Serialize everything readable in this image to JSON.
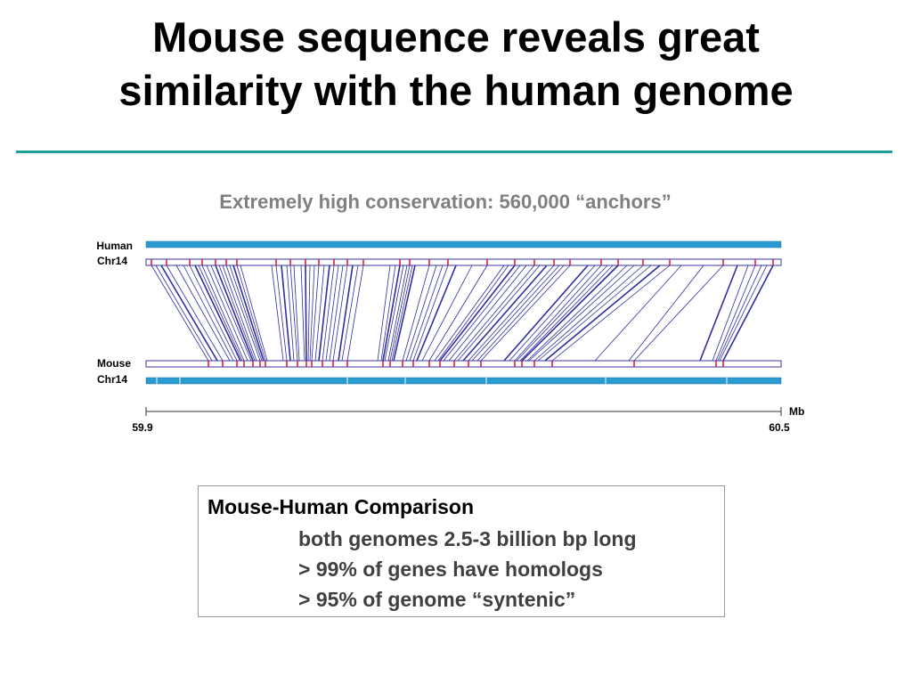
{
  "slide": {
    "title_line1": "Mouse sequence reveals great",
    "title_line2": "similarity with the human genome",
    "subtitle": "Extremely high conservation: 560,000 “anchors”"
  },
  "figure": {
    "human_label": "Human",
    "human_chr_label": "Chr14",
    "mouse_label": "Mouse",
    "mouse_chr_label": "Chr14",
    "unit_label": "Mb",
    "scale_start": "59.9",
    "scale_end": "60.5",
    "colors": {
      "chromosome_bar": "#2a9bd1",
      "track_outline": "#3a35a0",
      "anchor_line": "#2e2ea0",
      "anchor_tick": "#e01030"
    }
  },
  "box": {
    "heading": "Mouse-Human Comparison",
    "lines": [
      "both genomes 2.5-3 billion bp long",
      "> 99% of genes have homologs",
      "> 95% of genome “syntenic”"
    ]
  }
}
